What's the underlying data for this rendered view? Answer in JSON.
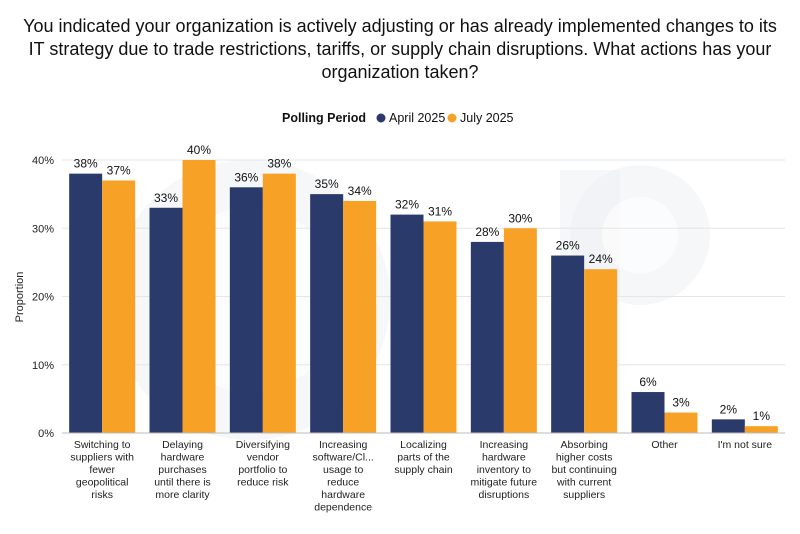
{
  "colors": {
    "april": "#2a3a6b",
    "july": "#f7a227"
  },
  "chart_data": {
    "type": "bar",
    "title_lines": [
      "You indicated your organization is actively adjusting or has already implemented changes to its",
      "IT strategy due to trade restrictions, tariffs, or supply chain disruptions. What actions has your",
      "organization taken?"
    ],
    "legend_title": "Polling Period",
    "ylabel": "Proportion",
    "ylim": [
      0,
      40
    ],
    "yticks": [
      "0%",
      "10%",
      "20%",
      "30%",
      "40%"
    ],
    "categories": [
      [
        "Switching to",
        "suppliers with",
        "fewer",
        "geopolitical",
        "risks"
      ],
      [
        "Delaying",
        "hardware",
        "purchases",
        "until there is",
        "more clarity"
      ],
      [
        "Diversifying",
        "vendor",
        "portfolio to",
        "reduce risk"
      ],
      [
        "Increasing",
        "software/Cl...",
        "usage to",
        "reduce",
        "hardware",
        "dependence"
      ],
      [
        "Localizing",
        "parts of the",
        "supply chain"
      ],
      [
        "Increasing",
        "hardware",
        "inventory to",
        "mitigate future",
        "disruptions"
      ],
      [
        "Absorbing",
        "higher costs",
        "but continuing",
        "with current",
        "suppliers"
      ],
      [
        "Other"
      ],
      [
        "I'm not sure"
      ]
    ],
    "series": [
      {
        "name": "April 2025",
        "values": [
          38,
          33,
          36,
          35,
          32,
          28,
          26,
          6,
          2
        ],
        "labels": [
          "38%",
          "33%",
          "36%",
          "35%",
          "32%",
          "28%",
          "26%",
          "6%",
          "2%"
        ]
      },
      {
        "name": "July 2025",
        "values": [
          37,
          40,
          38,
          34,
          31,
          30,
          24,
          3,
          1
        ],
        "labels": [
          "37%",
          "40%",
          "38%",
          "34%",
          "31%",
          "30%",
          "24%",
          "3%",
          "1%"
        ]
      }
    ]
  }
}
